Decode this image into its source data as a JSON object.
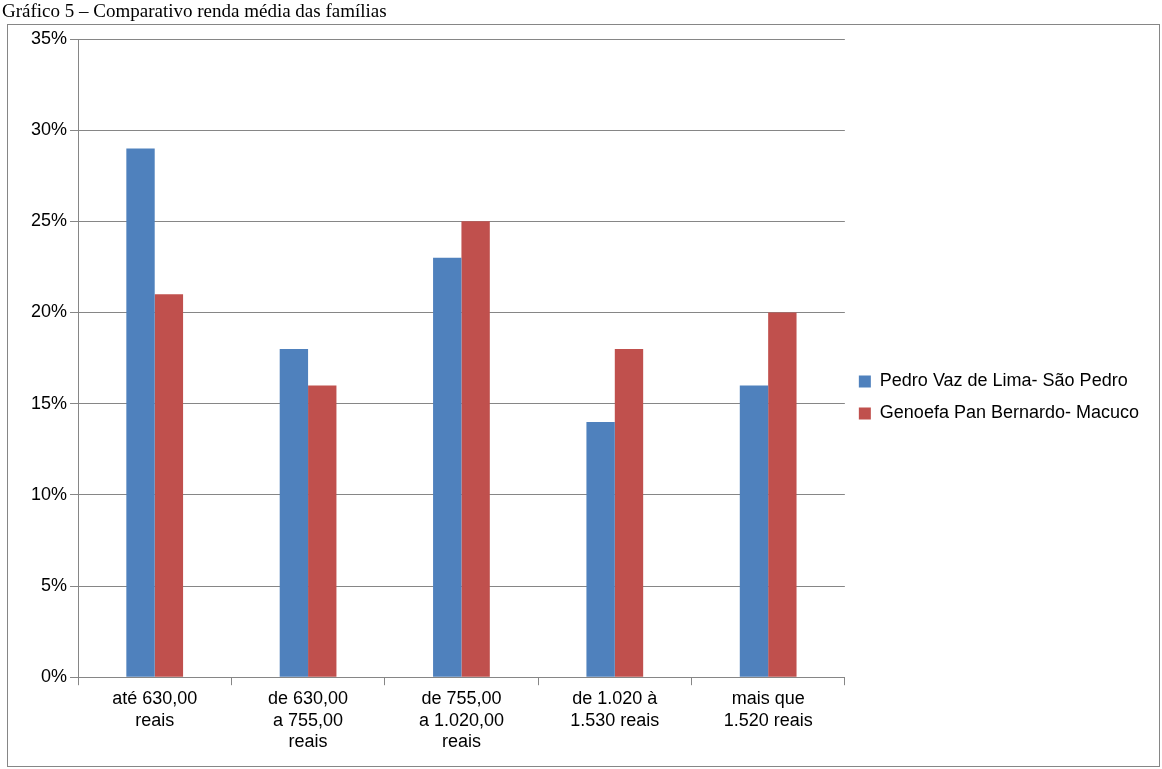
{
  "chart_data": {
    "type": "bar",
    "title": "Gráfico 5 – Comparativo renda média das famílias",
    "categories": [
      "até 630,00 reais",
      "de 630,00 a 755,00 reais",
      "de 755,00 a 1.020,00 reais",
      "de 1.020 à 1.530 reais",
      "mais que 1.520 reais"
    ],
    "series": [
      {
        "name": "Pedro Vaz de Lima- São Pedro",
        "color": "#4f81bd",
        "values": [
          29,
          18,
          23,
          14,
          16
        ]
      },
      {
        "name": "Genoefa Pan Bernardo- Macuco",
        "color": "#c0504d",
        "values": [
          21,
          16,
          25,
          18,
          20
        ]
      }
    ],
    "ylim": [
      0,
      35
    ],
    "yticks": [
      {
        "value": 0,
        "label": "0%"
      },
      {
        "value": 5,
        "label": "5%"
      },
      {
        "value": 10,
        "label": "10%"
      },
      {
        "value": 15,
        "label": "15%"
      },
      {
        "value": 20,
        "label": "20%"
      },
      {
        "value": 25,
        "label": "25%"
      },
      {
        "value": 30,
        "label": "30%"
      },
      {
        "value": 35,
        "label": "35%"
      }
    ],
    "grid": "y",
    "legend": "right"
  }
}
